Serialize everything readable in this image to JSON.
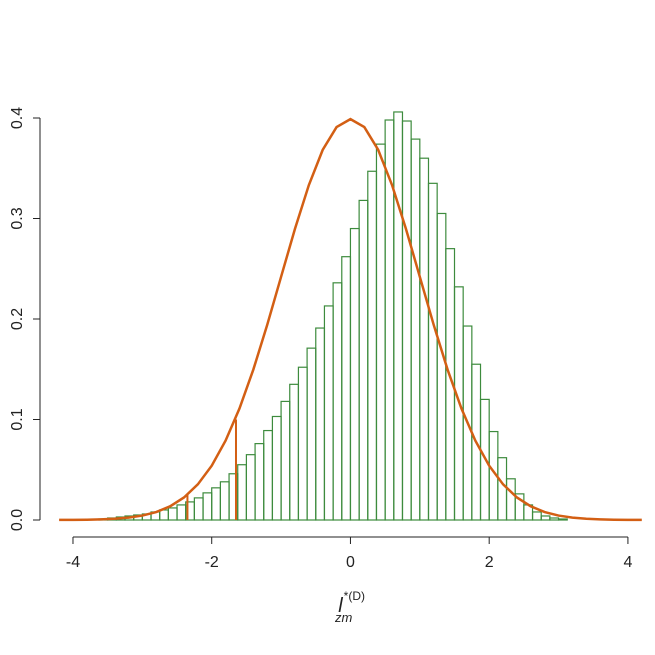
{
  "chart_data": {
    "type": "histogram",
    "xlabel": {
      "main": "l",
      "sub": "zm",
      "sup": "*(D)"
    },
    "bins": [
      -3.625,
      -3.5,
      -3.375,
      -3.25,
      -3.125,
      -3.0,
      -2.875,
      -2.75,
      -2.625,
      -2.5,
      -2.375,
      -2.25,
      -2.125,
      -2.0,
      -1.875,
      -1.75,
      -1.625,
      -1.5,
      -1.375,
      -1.25,
      -1.125,
      -1.0,
      -0.875,
      -0.75,
      -0.625,
      -0.5,
      -0.375,
      -0.25,
      -0.125,
      0.0,
      0.125,
      0.25,
      0.375,
      0.5,
      0.625,
      0.75,
      0.875,
      1.0,
      1.125,
      1.25,
      1.375,
      1.5,
      1.625,
      1.75,
      1.875,
      2.0,
      2.125,
      2.25,
      2.375,
      2.5,
      2.625,
      2.75,
      2.875,
      3.0,
      3.125
    ],
    "values": [
      0.001,
      0.002,
      0.003,
      0.004,
      0.005,
      0.006,
      0.008,
      0.01,
      0.012,
      0.015,
      0.018,
      0.022,
      0.027,
      0.032,
      0.038,
      0.046,
      0.055,
      0.065,
      0.076,
      0.089,
      0.103,
      0.118,
      0.135,
      0.152,
      0.171,
      0.191,
      0.213,
      0.236,
      0.262,
      0.29,
      0.318,
      0.347,
      0.374,
      0.398,
      0.406,
      0.397,
      0.379,
      0.36,
      0.335,
      0.305,
      0.27,
      0.232,
      0.193,
      0.155,
      0.12,
      0.088,
      0.062,
      0.041,
      0.026,
      0.015,
      0.008,
      0.004,
      0.002,
      0.001
    ],
    "color": "#3d8b3d",
    "density": {
      "color": "#d35f14",
      "x": [
        -4.2,
        -4.0,
        -3.8,
        -3.6,
        -3.4,
        -3.2,
        -3.0,
        -2.8,
        -2.6,
        -2.4,
        -2.2,
        -2.0,
        -1.8,
        -1.6,
        -1.4,
        -1.2,
        -1.0,
        -0.8,
        -0.6,
        -0.4,
        -0.2,
        0.0,
        0.2,
        0.4,
        0.6,
        0.8,
        1.0,
        1.2,
        1.4,
        1.6,
        1.8,
        2.0,
        2.2,
        2.4,
        2.6,
        2.8,
        3.0,
        3.2,
        3.4,
        3.6,
        3.8,
        4.0,
        4.2
      ],
      "y": [
        0.0001,
        0.0001,
        0.0003,
        0.0006,
        0.0012,
        0.0024,
        0.0044,
        0.0079,
        0.0136,
        0.0224,
        0.0355,
        0.054,
        0.079,
        0.1109,
        0.1497,
        0.1942,
        0.242,
        0.2897,
        0.3332,
        0.3683,
        0.391,
        0.3989,
        0.391,
        0.3683,
        0.3332,
        0.2897,
        0.242,
        0.1942,
        0.1497,
        0.1109,
        0.079,
        0.054,
        0.0355,
        0.0224,
        0.0136,
        0.0079,
        0.0044,
        0.0024,
        0.0012,
        0.0006,
        0.0003,
        0.0001,
        0.0001
      ]
    },
    "vlines": {
      "x": [
        -2.35,
        -1.65
      ],
      "y": [
        0.026,
        0.1
      ]
    },
    "xlim": [
      -4.35,
      4.35
    ],
    "ylim": [
      0,
      0.4
    ],
    "xticks": [
      -4,
      -2,
      0,
      2,
      4
    ],
    "yticks": [
      {
        "value": 0,
        "label": "0.0"
      },
      0.1,
      0.2,
      0.3,
      0.4
    ]
  }
}
